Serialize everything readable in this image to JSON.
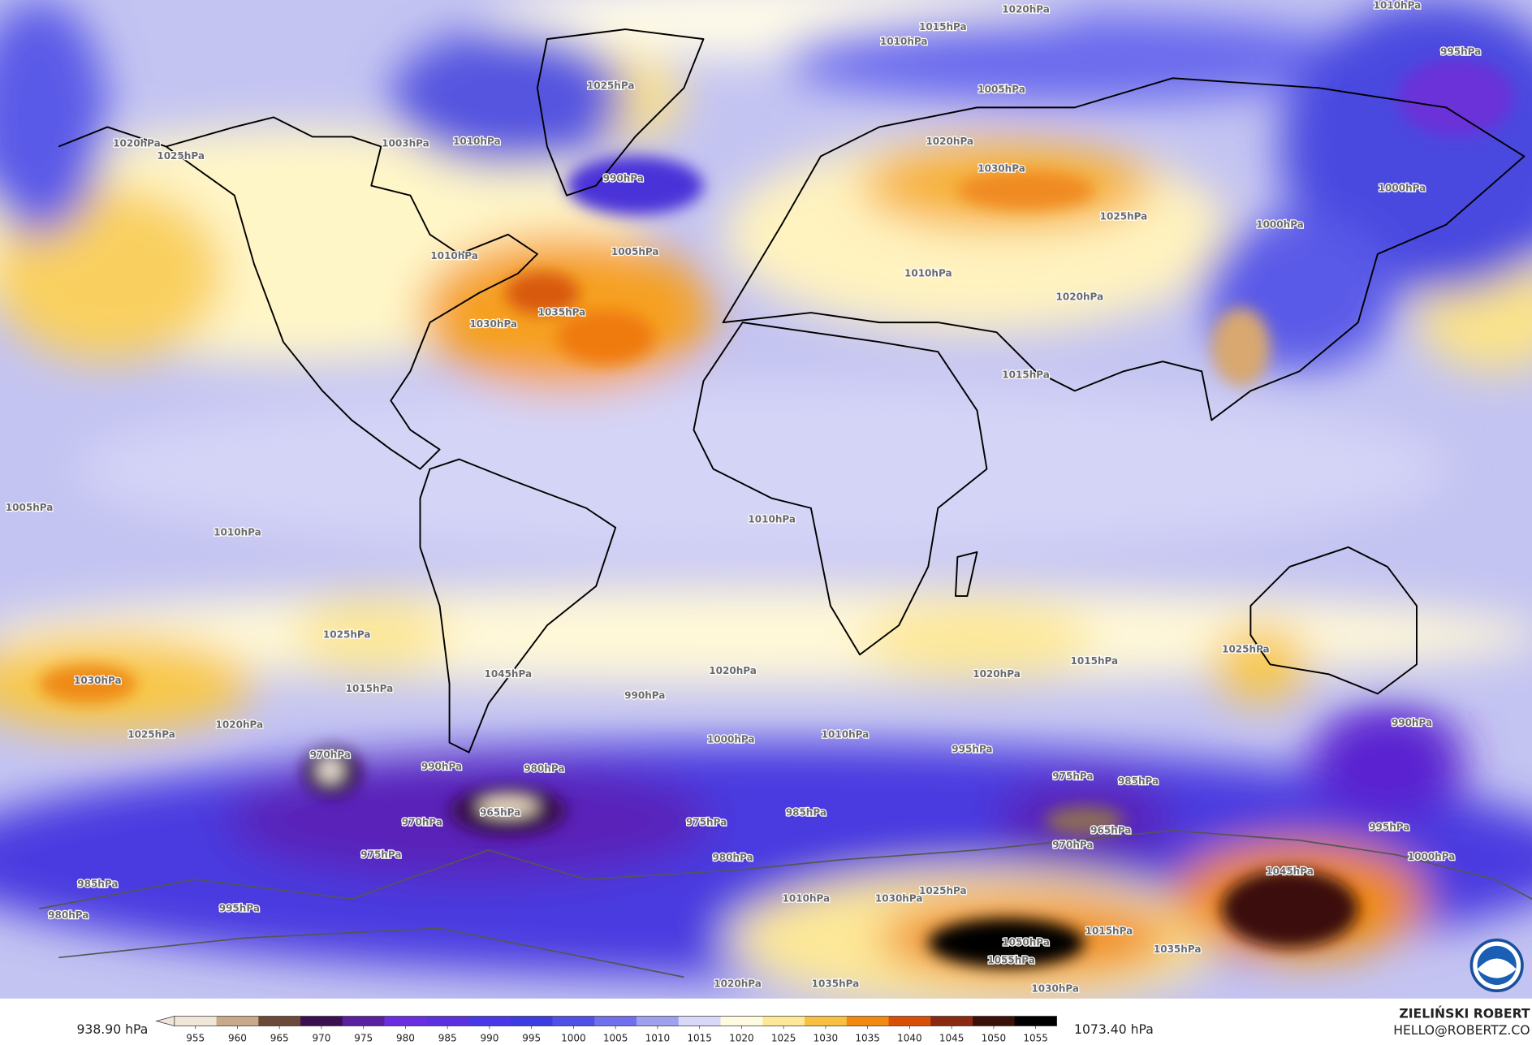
{
  "contour_labels": [
    "1020hPa",
    "1010hPa",
    "1015hPa",
    "1010hPa",
    "995hPa",
    "1005hPa",
    "1025hPa",
    "1020hPa",
    "1025hPa",
    "1010hPa",
    "1003hPa",
    "990hPa",
    "1020hPa",
    "1030hPa",
    "1025hPa",
    "1000hPa",
    "1000hPa",
    "1010hPa",
    "1005hPa",
    "1010hPa",
    "1020hPa",
    "1035hPa",
    "1030hPa",
    "1015hPa",
    "1010hPa",
    "1010hPa",
    "1005hPa",
    "1025hPa",
    "1030hPa",
    "1015hPa",
    "1045hPa",
    "990hPa",
    "1020hPa",
    "1020hPa",
    "1015hPa",
    "1025hPa",
    "1025hPa",
    "1020hPa",
    "1000hPa",
    "1010hPa",
    "995hPa",
    "970hPa",
    "980hPa",
    "990hPa",
    "965hPa",
    "970hPa",
    "975hPa",
    "985hPa",
    "975hPa",
    "985hPa",
    "965hPa",
    "970hPa",
    "975hPa",
    "980hPa",
    "985hPa",
    "980hPa",
    "995hPa",
    "1010hPa",
    "1030hPa",
    "1025hPa",
    "1045hPa",
    "1050hPa",
    "1055hPa",
    "1015hPa",
    "1035hPa",
    "1020hPa",
    "1035hPa",
    "1030hPa",
    "990hPa",
    "995hPa",
    "1000hPa"
  ],
  "colorbar": {
    "ticks": [
      955,
      960,
      965,
      970,
      975,
      980,
      985,
      990,
      995,
      1000,
      1005,
      1010,
      1015,
      1020,
      1025,
      1030,
      1035,
      1040,
      1045,
      1050,
      1055
    ],
    "colors": [
      "#efe6d8",
      "#c8a98a",
      "#6b4a3a",
      "#3a1050",
      "#5a20a0",
      "#6a2ee0",
      "#5a30e0",
      "#4a38e8",
      "#3c3ce0",
      "#5050e8",
      "#7070ee",
      "#a0a0f0",
      "#d8d8f8",
      "#fffbe0",
      "#fde89a",
      "#f8c040",
      "#f08a10",
      "#d85008",
      "#8a2a10",
      "#3a1008",
      "#000000"
    ],
    "min_label": "938.90 hPa",
    "max_label": "1073.40 hPa"
  },
  "credit": {
    "name": "ZIELIŃSKI ROBERT",
    "email": "HELLO@ROBERTZ.CO"
  }
}
